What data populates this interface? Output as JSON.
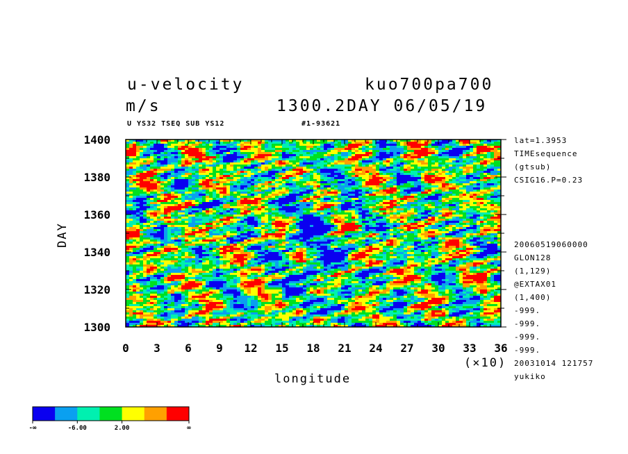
{
  "header": {
    "variable": "u-velocity",
    "run": "kuo700pa700",
    "units": "m/s",
    "time_info": "1300.2DAY 06/05/19",
    "subtitle_left": "U YS32 TSEQ SUB YS12",
    "subtitle_right": "#1-93621"
  },
  "side_notes": {
    "top": [
      "lat=1.3953",
      "TIMEsequence",
      "(gtsub)",
      "CSIG16.P=0.23"
    ],
    "bottom": [
      "20060519060000",
      "GLON128",
      "(1,129)",
      "@EXTAX01",
      "(1,400)",
      "-999.",
      "-999.",
      "-999.",
      "-999.",
      "20031014 121757",
      "yukiko"
    ]
  },
  "chart_data": {
    "type": "heatmap",
    "xlabel": "longitude",
    "ylabel": "DAY",
    "x_scale_note": "(×10)",
    "xlim": [
      0,
      36
    ],
    "ylim": [
      1300,
      1400
    ],
    "x_ticks": [
      "0",
      "3",
      "6",
      "9",
      "12",
      "15",
      "18",
      "21",
      "24",
      "27",
      "30",
      "33",
      "36"
    ],
    "y_ticks": [
      "1300",
      "1320",
      "1340",
      "1360",
      "1380",
      "1400"
    ],
    "grid": false,
    "colorbar": {
      "colors": [
        "#0a00f0",
        "#0aa0f0",
        "#00f0b0",
        "#00e020",
        "#ffff00",
        "#ffa000",
        "#ff0000"
      ],
      "labels": [
        "-∞",
        "-6.00",
        "2.00",
        "∞"
      ]
    }
  }
}
